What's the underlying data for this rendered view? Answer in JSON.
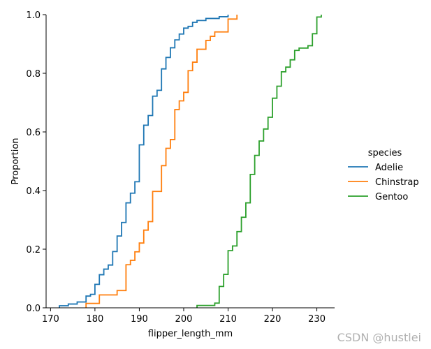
{
  "chart_data": {
    "type": "line",
    "subtype": "ecdf-step",
    "xlabel": "flipper_length_mm",
    "ylabel": "Proportion",
    "xlim": [
      169,
      234
    ],
    "ylim": [
      0,
      1
    ],
    "xticks": [
      170,
      180,
      190,
      200,
      210,
      220,
      230
    ],
    "yticks": [
      0.0,
      0.2,
      0.4,
      0.6,
      0.8,
      1.0
    ],
    "grid": false,
    "legend": {
      "title": "species",
      "position": "right"
    },
    "series": [
      {
        "name": "Adelie",
        "color": "#1f77b4",
        "x": [
          172,
          174,
          176,
          178,
          179,
          180,
          181,
          182,
          183,
          184,
          185,
          186,
          187,
          188,
          189,
          190,
          191,
          192,
          193,
          194,
          195,
          196,
          197,
          198,
          199,
          200,
          201,
          202,
          203,
          205,
          208,
          210
        ],
        "y": [
          0.007,
          0.013,
          0.02,
          0.04,
          0.046,
          0.08,
          0.113,
          0.132,
          0.146,
          0.192,
          0.245,
          0.291,
          0.358,
          0.391,
          0.43,
          0.556,
          0.623,
          0.656,
          0.722,
          0.742,
          0.815,
          0.854,
          0.887,
          0.914,
          0.934,
          0.954,
          0.96,
          0.974,
          0.98,
          0.987,
          0.993,
          1.0
        ]
      },
      {
        "name": "Chinstrap",
        "color": "#ff7f0e",
        "x": [
          178,
          181,
          185,
          187,
          188,
          189,
          190,
          191,
          192,
          193,
          195,
          196,
          197,
          198,
          199,
          200,
          201,
          202,
          203,
          205,
          206,
          207,
          210,
          212
        ],
        "y": [
          0.015,
          0.044,
          0.059,
          0.147,
          0.162,
          0.191,
          0.221,
          0.265,
          0.294,
          0.397,
          0.485,
          0.544,
          0.574,
          0.676,
          0.706,
          0.735,
          0.809,
          0.838,
          0.882,
          0.912,
          0.926,
          0.941,
          0.985,
          1.0
        ]
      },
      {
        "name": "Gentoo",
        "color": "#2ca02c",
        "x": [
          203,
          207,
          208,
          209,
          210,
          211,
          212,
          213,
          214,
          215,
          216,
          217,
          218,
          219,
          220,
          221,
          222,
          223,
          224,
          225,
          226,
          228,
          229,
          230,
          231
        ],
        "y": [
          0.008,
          0.016,
          0.073,
          0.114,
          0.195,
          0.211,
          0.26,
          0.309,
          0.358,
          0.455,
          0.52,
          0.569,
          0.61,
          0.65,
          0.715,
          0.756,
          0.805,
          0.821,
          0.846,
          0.878,
          0.886,
          0.894,
          0.935,
          0.992,
          1.0
        ]
      }
    ]
  },
  "watermark": "CSDN @hustlei"
}
